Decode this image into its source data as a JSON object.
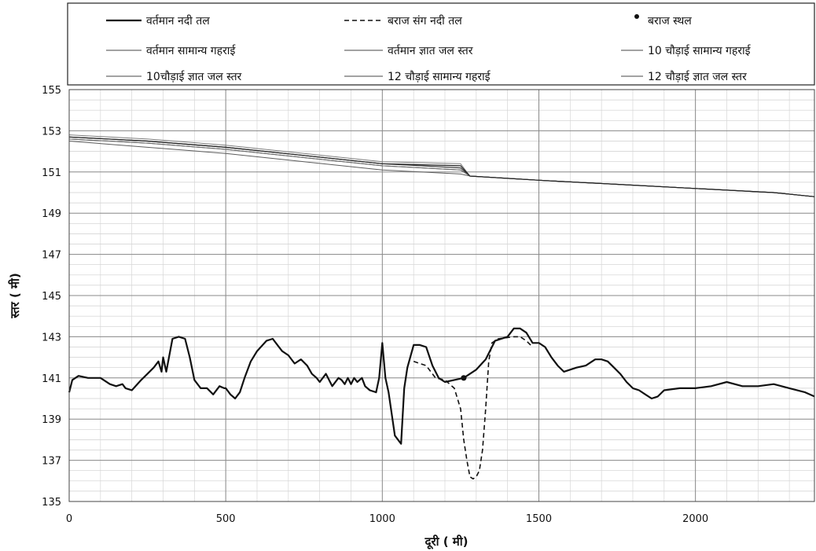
{
  "chart_data": {
    "type": "line",
    "xlabel": "दूरी ( मी)",
    "ylabel": "स्तर ( मी)",
    "xlim": [
      0,
      2380
    ],
    "ylim": [
      135,
      155
    ],
    "x_ticks": [
      0,
      500,
      1000,
      1500,
      2000
    ],
    "y_ticks": [
      135,
      137,
      139,
      141,
      143,
      145,
      147,
      149,
      151,
      153,
      155
    ],
    "grid": true,
    "legend_position": "top",
    "legend": [
      {
        "label": "वर्तमान नदी तल",
        "style": "solid-thick"
      },
      {
        "label": "बराज संग नदी तल",
        "style": "dashed"
      },
      {
        "label": "बराज स्थल",
        "style": "marker"
      },
      {
        "label": "वर्तमान सामान्य गहराई",
        "style": "thin"
      },
      {
        "label": "वर्तमान ज्ञात जल स्तर",
        "style": "thin"
      },
      {
        "label": "10 चौड़ाई सामान्य गहराई",
        "style": "thin"
      },
      {
        "label": "10चौड़ाई ज्ञात जल स्तर",
        "style": "thin"
      },
      {
        "label": "12 चौड़ाई सामान्य गहराई",
        "style": "thin"
      },
      {
        "label": "12 चौड़ाई ज्ञात जल स्तर",
        "style": "thin"
      }
    ],
    "series": [
      {
        "name": "वर्तमान नदी तल",
        "x": [
          0,
          10,
          30,
          60,
          100,
          130,
          150,
          170,
          180,
          200,
          230,
          250,
          270,
          285,
          295,
          300,
          310,
          330,
          350,
          370,
          385,
          400,
          420,
          440,
          460,
          480,
          495,
          500,
          515,
          530,
          545,
          560,
          580,
          600,
          630,
          650,
          665,
          680,
          700,
          720,
          740,
          760,
          775,
          790,
          800,
          820,
          840,
          860,
          870,
          880,
          890,
          900,
          910,
          920,
          935,
          945,
          960,
          980,
          990,
          1000,
          1010,
          1020,
          1040,
          1060,
          1070,
          1080,
          1100,
          1120,
          1140,
          1160,
          1180,
          1200,
          1230,
          1260,
          1300,
          1330,
          1360,
          1400,
          1420,
          1440,
          1460,
          1480,
          1500,
          1520,
          1540,
          1560,
          1580,
          1600,
          1620,
          1650,
          1680,
          1700,
          1720,
          1740,
          1760,
          1780,
          1800,
          1820,
          1840,
          1860,
          1880,
          1900,
          1950,
          2000,
          2050,
          2100,
          2150,
          2200,
          2250,
          2300,
          2350,
          2380
        ],
        "values": [
          140.3,
          140.9,
          141.1,
          141.0,
          141.0,
          140.7,
          140.6,
          140.7,
          140.5,
          140.4,
          140.9,
          141.2,
          141.5,
          141.8,
          141.3,
          142.0,
          141.3,
          142.9,
          143.0,
          142.9,
          142.0,
          140.9,
          140.5,
          140.5,
          140.2,
          140.6,
          140.5,
          140.5,
          140.2,
          140.0,
          140.3,
          141.0,
          141.8,
          142.3,
          142.8,
          142.9,
          142.6,
          142.3,
          142.1,
          141.7,
          141.9,
          141.6,
          141.2,
          141.0,
          140.8,
          141.2,
          140.6,
          141.0,
          140.9,
          140.7,
          141.0,
          140.7,
          141.0,
          140.8,
          141.0,
          140.6,
          140.4,
          140.3,
          141.0,
          142.7,
          141.0,
          140.3,
          138.2,
          137.8,
          140.5,
          141.5,
          142.6,
          142.6,
          142.5,
          141.6,
          141.0,
          140.8,
          140.9,
          141.0,
          141.4,
          141.9,
          142.8,
          143.0,
          143.4,
          143.4,
          143.2,
          142.7,
          142.7,
          142.5,
          142.0,
          141.6,
          141.3,
          141.4,
          141.5,
          141.6,
          141.9,
          141.9,
          141.8,
          141.5,
          141.2,
          140.8,
          140.5,
          140.4,
          140.2,
          140.0,
          140.1,
          140.4,
          140.5,
          140.5,
          140.6,
          140.8,
          140.6,
          140.6,
          140.7,
          140.5,
          140.3,
          140.1
        ]
      },
      {
        "name": "बराज संग नदी तल",
        "x": [
          1100,
          1140,
          1170,
          1200,
          1230,
          1250,
          1260,
          1270,
          1280,
          1290,
          1300,
          1310,
          1320,
          1330,
          1340,
          1350,
          1370,
          1420,
          1440,
          1460,
          1480
        ],
        "values": [
          141.8,
          141.6,
          141.0,
          140.9,
          140.5,
          139.5,
          138.0,
          137.0,
          136.2,
          136.1,
          136.2,
          136.5,
          137.5,
          139.5,
          141.8,
          142.7,
          142.9,
          143.0,
          143.0,
          142.8,
          142.5
        ]
      },
      {
        "name": "बराज स्थल",
        "x": [
          1260
        ],
        "values": [
          141.0
        ]
      },
      {
        "name": "वर्तमान सामान्य गहराई",
        "x": [
          0,
          250,
          500,
          750,
          1000,
          1250,
          1280,
          1500,
          1750,
          2000,
          2250,
          2380
        ],
        "values": [
          152.7,
          152.5,
          152.2,
          151.8,
          151.4,
          151.2,
          150.8,
          150.6,
          150.4,
          150.2,
          150.0,
          149.8
        ]
      },
      {
        "name": "वर्तमान ज्ञात जल स्तर",
        "x": [
          0,
          250,
          500,
          750,
          1000,
          1250,
          1280,
          1500,
          1750,
          2000,
          2250,
          2380
        ],
        "values": [
          152.6,
          152.4,
          152.1,
          151.7,
          151.3,
          151.1,
          150.8,
          150.6,
          150.4,
          150.2,
          150.0,
          149.8
        ]
      },
      {
        "name": "10 चौड़ाई सामान्य गहराई",
        "x": [
          0,
          250,
          500,
          750,
          1000,
          1250,
          1280,
          1500,
          1750,
          2000,
          2250,
          2380
        ],
        "values": [
          152.8,
          152.6,
          152.3,
          151.9,
          151.5,
          151.4,
          150.8,
          150.6,
          150.4,
          150.2,
          150.0,
          149.8
        ]
      },
      {
        "name": "10चौड़ाई ज्ञात जल स्तर",
        "x": [
          0,
          250,
          500,
          750,
          1000,
          1250,
          1280,
          1500,
          1750,
          2000,
          2250,
          2380
        ],
        "values": [
          152.5,
          152.2,
          151.9,
          151.5,
          151.1,
          150.9,
          150.8,
          150.6,
          150.4,
          150.2,
          150.0,
          149.8
        ]
      },
      {
        "name": "12 चौड़ाई सामान्य गहराई",
        "x": [
          0,
          250,
          500,
          750,
          1000,
          1250,
          1280,
          1500,
          1750,
          2000,
          2250,
          2380
        ],
        "values": [
          152.6,
          152.4,
          152.1,
          151.7,
          151.3,
          151.1,
          150.8,
          150.6,
          150.4,
          150.2,
          150.0,
          149.8
        ]
      },
      {
        "name": "12 चौड़ाई ज्ञात जल स्तर",
        "x": [
          0,
          250,
          500,
          750,
          1000,
          1250,
          1280,
          1500,
          1750,
          2000,
          2250,
          2380
        ],
        "values": [
          152.7,
          152.5,
          152.2,
          151.8,
          151.4,
          151.3,
          150.8,
          150.6,
          150.4,
          150.2,
          150.0,
          149.8
        ]
      }
    ]
  }
}
